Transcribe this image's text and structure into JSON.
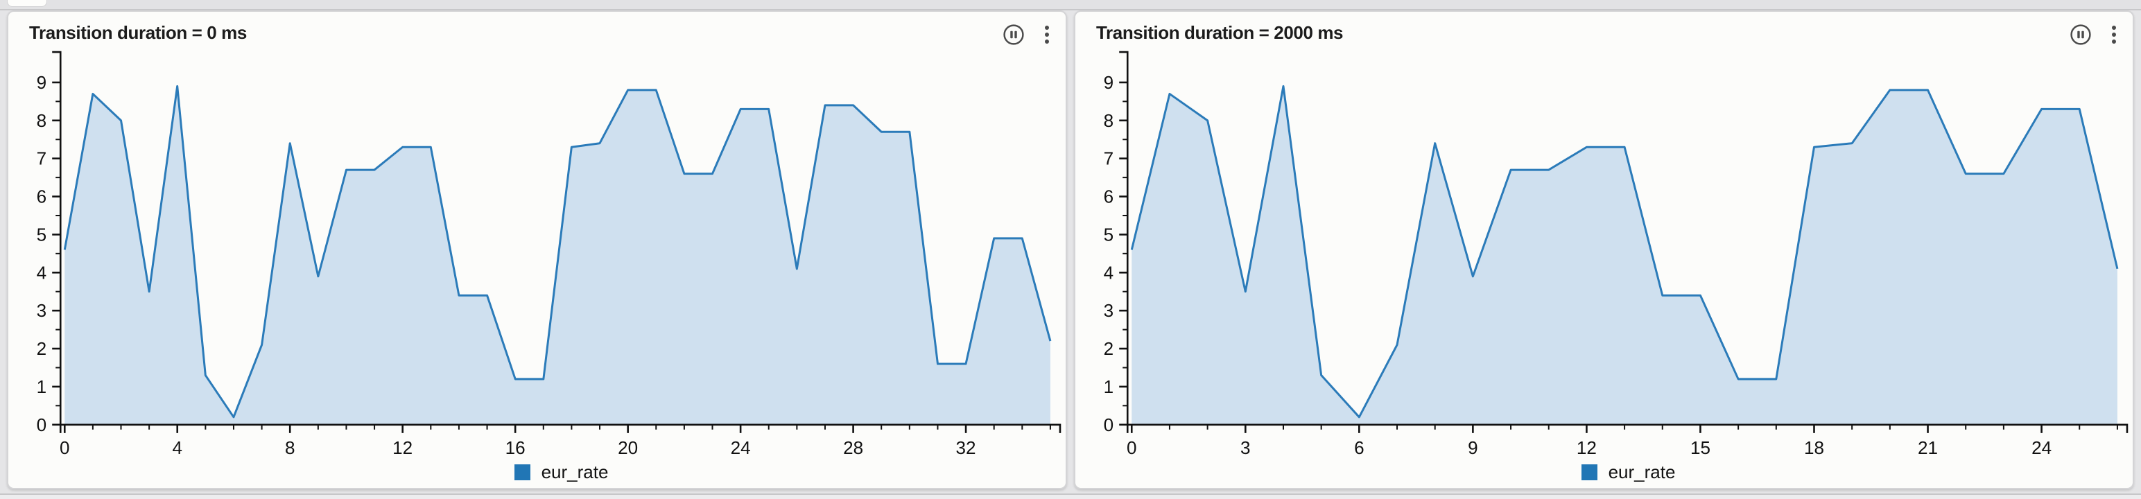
{
  "app": {
    "page_bg": "#e5e5e7",
    "panel_bg": "#fcfcfa",
    "icon_color": "#4a4a4a",
    "axis_color": "#111111"
  },
  "panels": [
    {
      "title": "Transition duration = 0 ms",
      "icons": [
        "pause-circle",
        "kebab-menu"
      ],
      "legend_label": "eur_rate"
    },
    {
      "title": "Transition duration = 2000 ms",
      "icons": [
        "pause-circle",
        "kebab-menu"
      ],
      "legend_label": "eur_rate"
    }
  ],
  "chart_data": [
    {
      "type": "area",
      "title": "Transition duration = 0 ms",
      "series": [
        {
          "name": "eur_rate",
          "values": [
            4.6,
            8.7,
            8.0,
            3.5,
            8.9,
            1.3,
            0.2,
            2.1,
            7.4,
            3.9,
            6.7,
            6.7,
            7.3,
            7.3,
            3.4,
            3.4,
            1.2,
            1.2,
            7.3,
            7.4,
            8.8,
            8.8,
            6.6,
            6.6,
            8.3,
            8.3,
            4.1,
            8.4,
            8.4,
            7.7,
            7.7,
            1.6,
            1.6,
            4.9,
            4.9,
            2.2
          ]
        }
      ],
      "xlabel": "",
      "ylabel": "",
      "xlim": [
        0,
        35
      ],
      "ylim": [
        0,
        9.8
      ],
      "grid": false,
      "x_major_tick_labels": [
        "0",
        "4",
        "8",
        "12",
        "16",
        "20",
        "24",
        "28",
        "32"
      ],
      "x_tick_major_every": 4,
      "x_minor_step": 1,
      "y_major_tick_labels": [
        "0",
        "1",
        "2",
        "3",
        "4",
        "5",
        "6",
        "7",
        "8",
        "9"
      ],
      "y_minor_step": 0.5,
      "legend_entries": [
        "eur_rate"
      ],
      "legend_position": "bottom-center",
      "line_color": "#2b7bb9",
      "fill_color": "#cfe0ef"
    },
    {
      "type": "area",
      "title": "Transition duration = 2000 ms",
      "series": [
        {
          "name": "eur_rate",
          "values": [
            4.6,
            8.7,
            8.0,
            3.5,
            8.9,
            1.3,
            0.2,
            2.1,
            7.4,
            3.9,
            6.7,
            6.7,
            7.3,
            7.3,
            3.4,
            3.4,
            1.2,
            1.2,
            7.3,
            7.4,
            8.8,
            8.8,
            6.6,
            6.6,
            8.3,
            8.3,
            4.1
          ]
        }
      ],
      "xlabel": "",
      "ylabel": "",
      "xlim": [
        0,
        26
      ],
      "ylim": [
        0,
        9.8
      ],
      "grid": false,
      "x_major_tick_labels": [
        "0",
        "3",
        "6",
        "9",
        "12",
        "15",
        "18",
        "21",
        "24"
      ],
      "x_tick_major_every": 3,
      "x_minor_step": 1,
      "y_major_tick_labels": [
        "0",
        "1",
        "2",
        "3",
        "4",
        "5",
        "6",
        "7",
        "8",
        "9"
      ],
      "y_minor_step": 0.5,
      "legend_entries": [
        "eur_rate"
      ],
      "legend_position": "bottom-center",
      "line_color": "#2b7bb9",
      "fill_color": "#cfe0ef"
    }
  ]
}
